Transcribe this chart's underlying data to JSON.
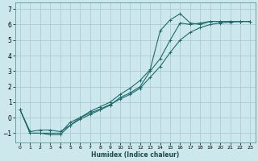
{
  "xlabel": "Humidex (Indice chaleur)",
  "bg_color": "#cce8ec",
  "grid_color": "#aacdd4",
  "line_color": "#1e6b6b",
  "xlim": [
    -0.5,
    23.5
  ],
  "ylim": [
    -1.6,
    7.4
  ],
  "xticks": [
    0,
    1,
    2,
    3,
    4,
    5,
    6,
    7,
    8,
    9,
    10,
    11,
    12,
    13,
    14,
    15,
    16,
    17,
    18,
    19,
    20,
    21,
    22,
    23
  ],
  "yticks": [
    -1,
    0,
    1,
    2,
    3,
    4,
    5,
    6,
    7
  ],
  "line1_x": [
    0,
    1,
    2,
    3,
    4,
    5,
    6,
    7,
    8,
    9,
    10,
    11,
    12,
    13,
    14,
    15,
    16,
    17,
    18,
    19,
    20,
    21,
    22,
    23
  ],
  "line1_y": [
    0.5,
    -1.0,
    -1.0,
    -1.0,
    -1.0,
    -0.3,
    0.0,
    0.4,
    0.7,
    1.0,
    1.5,
    1.9,
    2.4,
    3.1,
    5.6,
    6.3,
    6.7,
    6.1,
    6.0,
    6.2,
    6.2,
    6.2,
    6.2,
    6.2
  ],
  "line2_x": [
    0,
    1,
    2,
    3,
    4,
    5,
    6,
    7,
    8,
    9,
    10,
    11,
    12,
    13,
    14,
    15,
    16,
    17,
    18,
    19,
    20,
    21,
    22,
    23
  ],
  "line2_y": [
    0.5,
    -1.0,
    -1.0,
    -1.1,
    -1.1,
    -0.5,
    -0.1,
    0.2,
    0.5,
    0.8,
    1.3,
    1.6,
    2.0,
    3.0,
    3.8,
    5.0,
    6.1,
    6.0,
    6.1,
    6.2,
    6.2,
    6.2,
    6.2,
    6.2
  ],
  "line3_x": [
    0,
    1,
    2,
    3,
    4,
    5,
    6,
    7,
    8,
    9,
    10,
    11,
    12,
    13,
    14,
    15,
    16,
    17,
    18,
    19,
    20,
    21,
    22,
    23
  ],
  "line3_y": [
    0.5,
    -0.9,
    -0.8,
    -0.8,
    -0.9,
    -0.5,
    0.0,
    0.3,
    0.55,
    0.85,
    1.2,
    1.5,
    1.9,
    2.6,
    3.3,
    4.2,
    5.0,
    5.5,
    5.8,
    6.0,
    6.1,
    6.15,
    6.2,
    6.2
  ],
  "xlabel_fontsize": 5.5,
  "tick_fontsize_x": 4.5,
  "tick_fontsize_y": 5.5
}
